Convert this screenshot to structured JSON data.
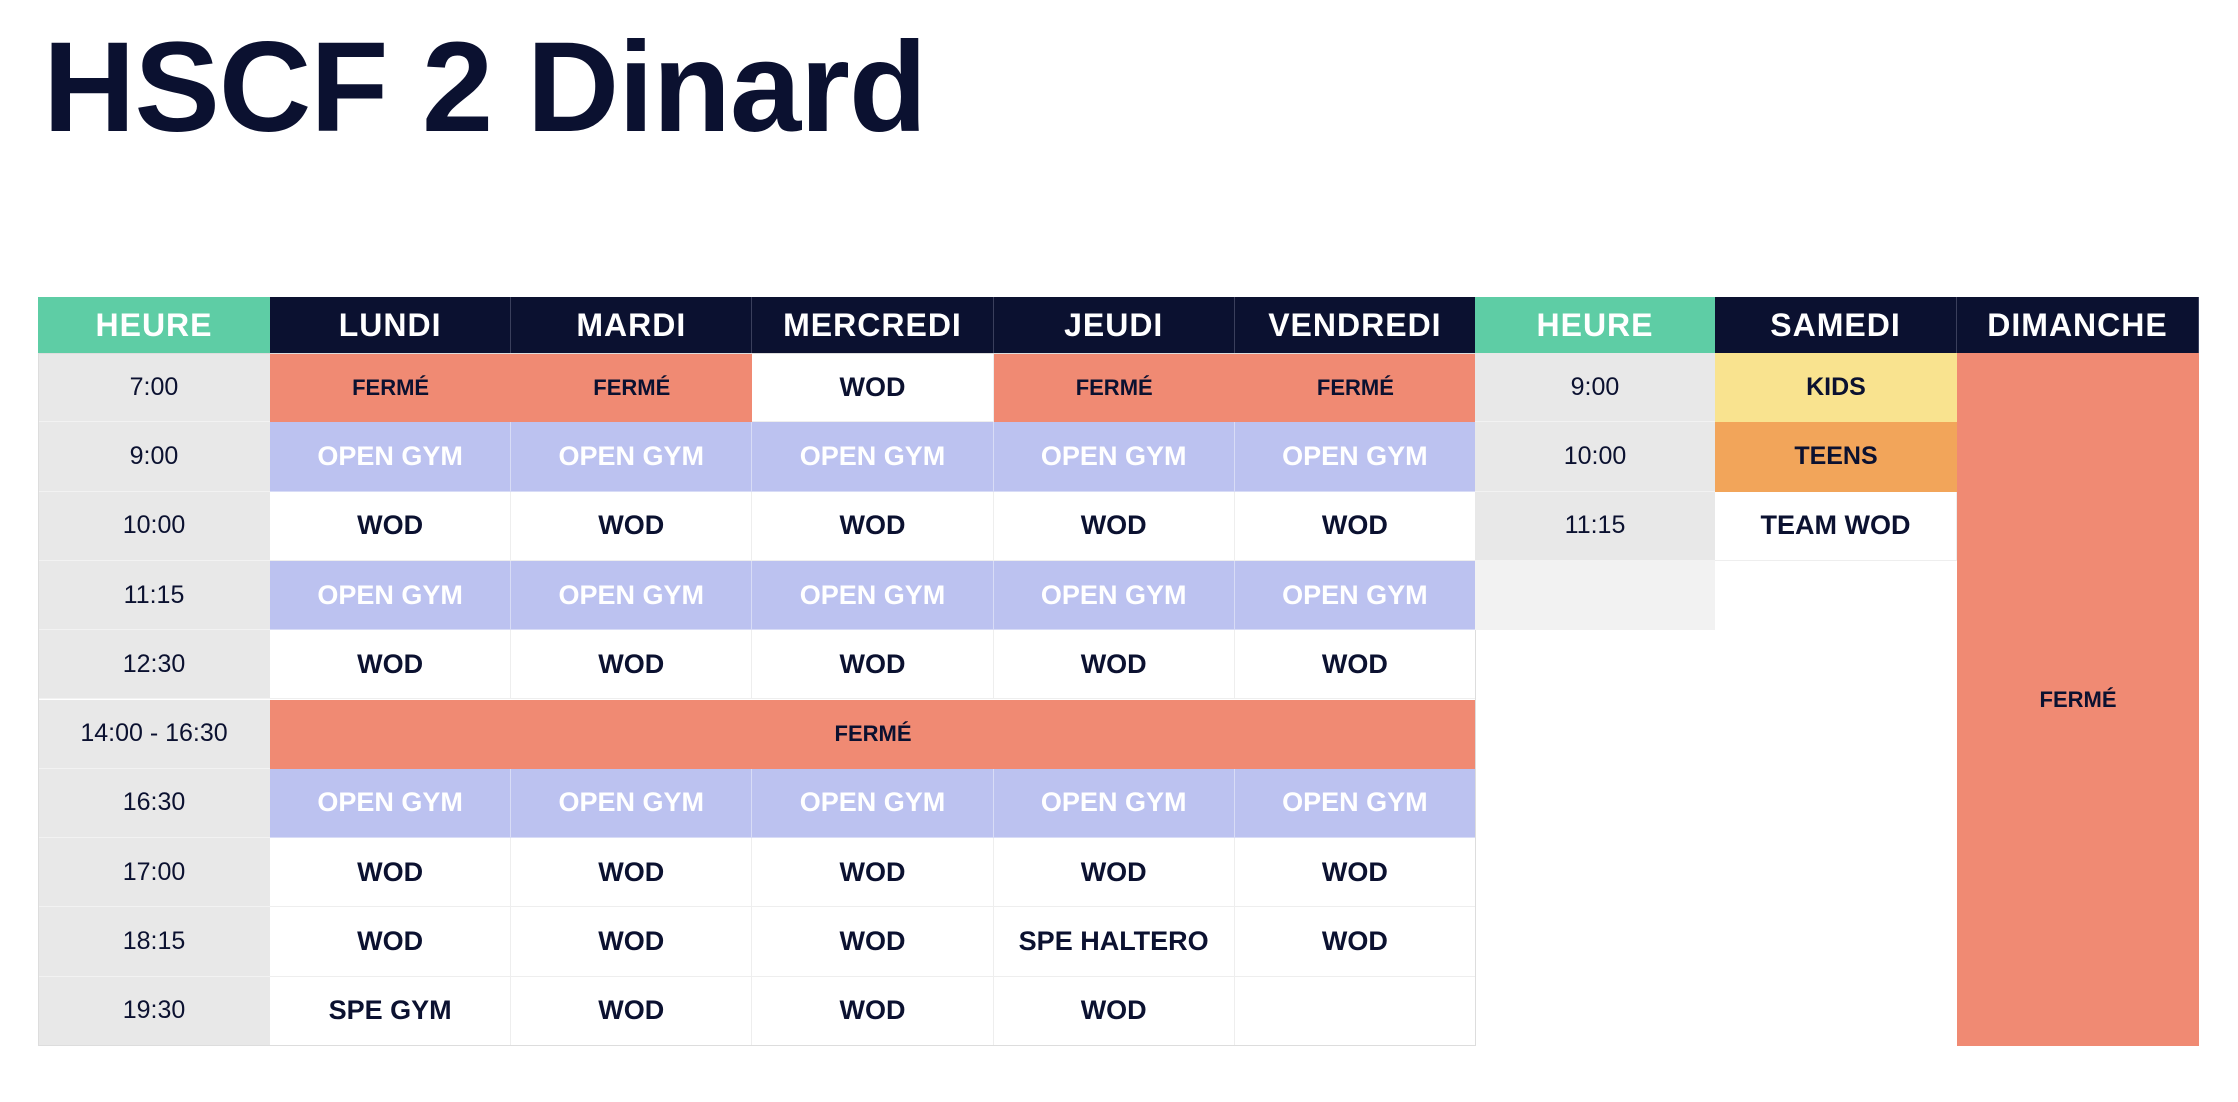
{
  "page": {
    "title": "HSCF 2 Dinard"
  },
  "weekday_table": {
    "hour_header": "HEURE",
    "days": [
      "LUNDI",
      "MARDI",
      "MERCREDI",
      "JEUDI",
      "VENDREDI"
    ],
    "times": [
      "7:00",
      "9:00",
      "10:00",
      "11:15",
      "12:30",
      "14:00 - 16:30",
      "16:30",
      "17:00",
      "18:15",
      "19:30"
    ],
    "rows": [
      [
        "FERMÉ",
        "FERMÉ",
        "WOD",
        "FERMÉ",
        "FERMÉ"
      ],
      [
        "OPEN GYM",
        "OPEN GYM",
        "OPEN GYM",
        "OPEN GYM",
        "OPEN GYM"
      ],
      [
        "WOD",
        "WOD",
        "WOD",
        "WOD",
        "WOD"
      ],
      [
        "OPEN GYM",
        "OPEN GYM",
        "OPEN GYM",
        "OPEN GYM",
        "OPEN GYM"
      ],
      [
        "WOD",
        "WOD",
        "WOD",
        "WOD",
        "WOD"
      ],
      [
        "FERMÉ"
      ],
      [
        "OPEN GYM",
        "OPEN GYM",
        "OPEN GYM",
        "OPEN GYM",
        "OPEN GYM"
      ],
      [
        "WOD",
        "WOD",
        "WOD",
        "WOD",
        "WOD"
      ],
      [
        "WOD",
        "WOD",
        "WOD",
        "SPE HALTERO",
        "WOD"
      ],
      [
        "SPE GYM",
        "WOD",
        "WOD",
        "WOD",
        ""
      ]
    ]
  },
  "weekend_table": {
    "hour_header": "HEURE",
    "saturday_header": "SAMEDI",
    "sunday_header": "DIMANCHE",
    "times": [
      "9:00",
      "10:00",
      "11:15",
      ""
    ],
    "saturday": [
      "KIDS",
      "TEENS",
      "TEAM WOD"
    ],
    "sunday": "FERMÉ"
  },
  "colors": {
    "navy": "#0b1130",
    "green": "#5ecda5",
    "closed": "#f08a73",
    "open_gym": "#bcc2f0",
    "kids": "#f9e38f",
    "teens": "#f2a55a",
    "time_bg": "#e8e8e8"
  }
}
